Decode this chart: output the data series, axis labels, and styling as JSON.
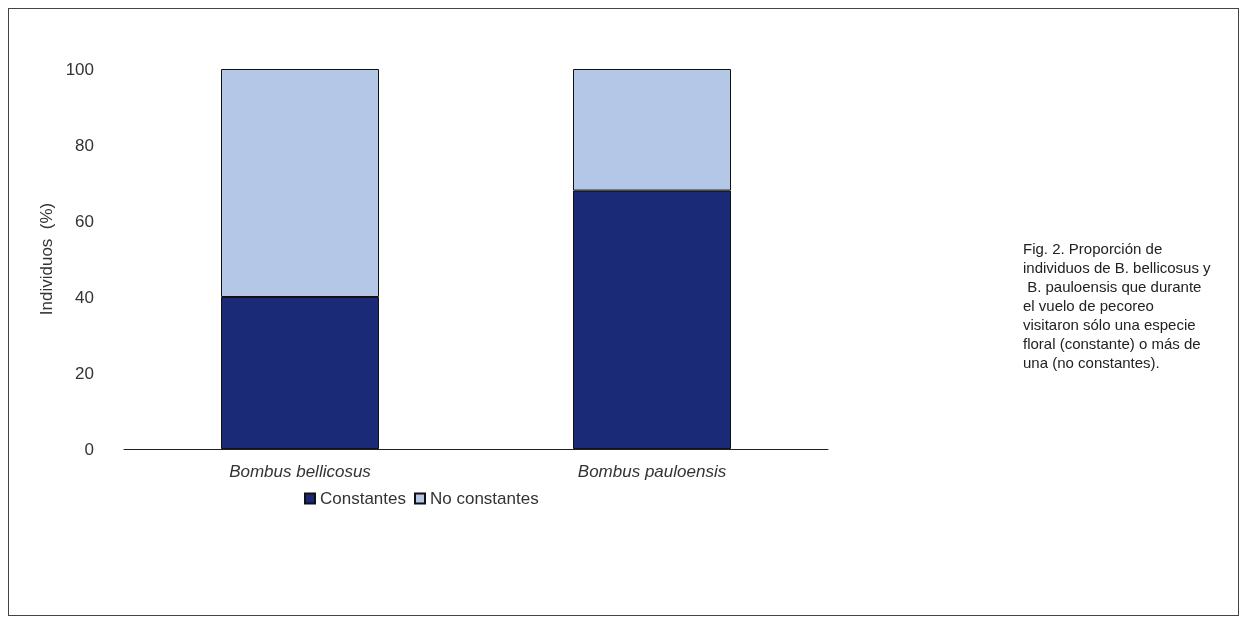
{
  "chart_data": {
    "type": "bar",
    "stacked": true,
    "ylabel": "Individuos  (%)",
    "categories": [
      "Bombus bellicosus",
      "Bombus pauloensis"
    ],
    "series": [
      {
        "name": "Constantes",
        "color": "#1a2a76",
        "values": [
          40,
          68
        ]
      },
      {
        "name": "No constantes",
        "color": "#b4c7e7",
        "values": [
          60,
          32
        ]
      }
    ],
    "ylim": [
      0,
      100
    ],
    "yticks": [
      0,
      20,
      40,
      60,
      80,
      100
    ],
    "grid": false,
    "legend": "bottom",
    "annotations": [
      "Fig. 2. Proporción de individuos de B. bellicosus y B. pauloensis que durante el vuelo de pecoreo visitaron sólo una especie floral (constante) o más de una (no constantes)."
    ]
  }
}
